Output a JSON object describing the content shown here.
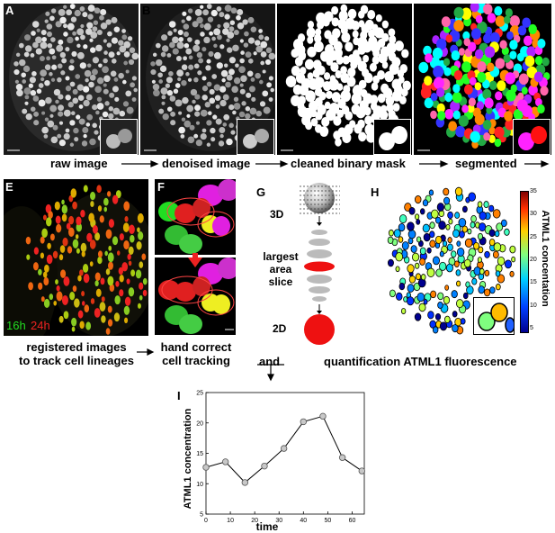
{
  "panels": {
    "A": "A",
    "B": "B",
    "C": "C",
    "D": "D",
    "E": "E",
    "F": "F",
    "G": "G",
    "H": "H",
    "I": "I"
  },
  "captions": {
    "raw": "raw image",
    "denoised": "denoised image",
    "mask": "cleaned binary mask",
    "segmented": "segmented",
    "registered_1": "registered images",
    "registered_2": "to track cell lineages",
    "hand_1": "hand correct",
    "hand_2": "cell tracking",
    "and": "and",
    "quant": "quantification ATML1 fluorescence"
  },
  "panel_e": {
    "t1": "16h",
    "t2": "24h",
    "t1_color": "#22dd22",
    "t2_color": "#ee2222"
  },
  "panel_g": {
    "label_3d": "3D",
    "largest_1": "largest",
    "largest_2": "area",
    "largest_3": "slice",
    "label_2d": "2D"
  },
  "colorbar": {
    "label": "ATML1 concentation",
    "ticks": [
      "35",
      "30",
      "25",
      "20",
      "15",
      "10",
      "5"
    ]
  },
  "chart_data": {
    "type": "line",
    "title": "",
    "xlabel": "time",
    "ylabel": "ATML1 concentration",
    "x": [
      0,
      8,
      16,
      24,
      32,
      40,
      48,
      56,
      64
    ],
    "series": [
      {
        "values": [
          12.7,
          13.6,
          10.2,
          12.9,
          15.8,
          20.2,
          21.1,
          14.3,
          12.1
        ]
      }
    ],
    "xlim": [
      0,
      65
    ],
    "ylim": [
      5,
      25
    ],
    "xticks": [
      "0",
      "10",
      "20",
      "30",
      "40",
      "50",
      "60"
    ],
    "yticks": [
      "5",
      "10",
      "15",
      "20",
      "25"
    ]
  }
}
